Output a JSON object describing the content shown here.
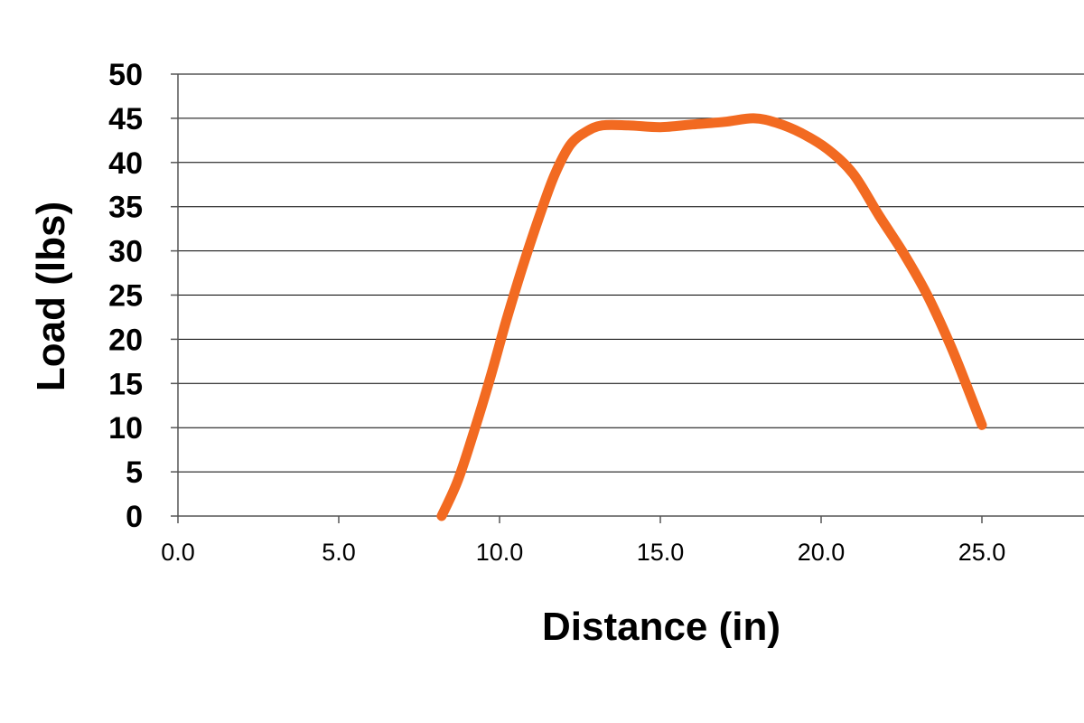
{
  "chart_data": {
    "type": "line",
    "title": "",
    "xlabel": "Distance (in)",
    "ylabel": "Load (lbs)",
    "xlim": [
      0,
      28.5
    ],
    "ylim": [
      0,
      50
    ],
    "x_ticks": [
      "0.0",
      "5.0",
      "10.0",
      "15.0",
      "20.0",
      "25.0"
    ],
    "y_ticks": [
      "0",
      "5",
      "10",
      "15",
      "20",
      "25",
      "30",
      "35",
      "40",
      "45",
      "50"
    ],
    "grid": "horizontal",
    "legend": "none",
    "series": [
      {
        "color": "#f26a21",
        "x": [
          8.2,
          8.7,
          9.2,
          9.7,
          10.2,
          10.7,
          11.2,
          11.7,
          12.2,
          12.7,
          13.2,
          14.0,
          15.0,
          16.0,
          17.0,
          17.9,
          18.6,
          19.4,
          20.2,
          21.0,
          21.8,
          22.6,
          23.3,
          24.0,
          24.5,
          25.0
        ],
        "y": [
          0,
          4,
          9.5,
          15.5,
          22,
          28,
          33.5,
          38.5,
          42,
          43.5,
          44.2,
          44.2,
          44.0,
          44.3,
          44.6,
          45.0,
          44.5,
          43.3,
          41.5,
          38.7,
          34.0,
          29.5,
          25.0,
          19.5,
          15.0,
          10.3
        ]
      }
    ]
  }
}
